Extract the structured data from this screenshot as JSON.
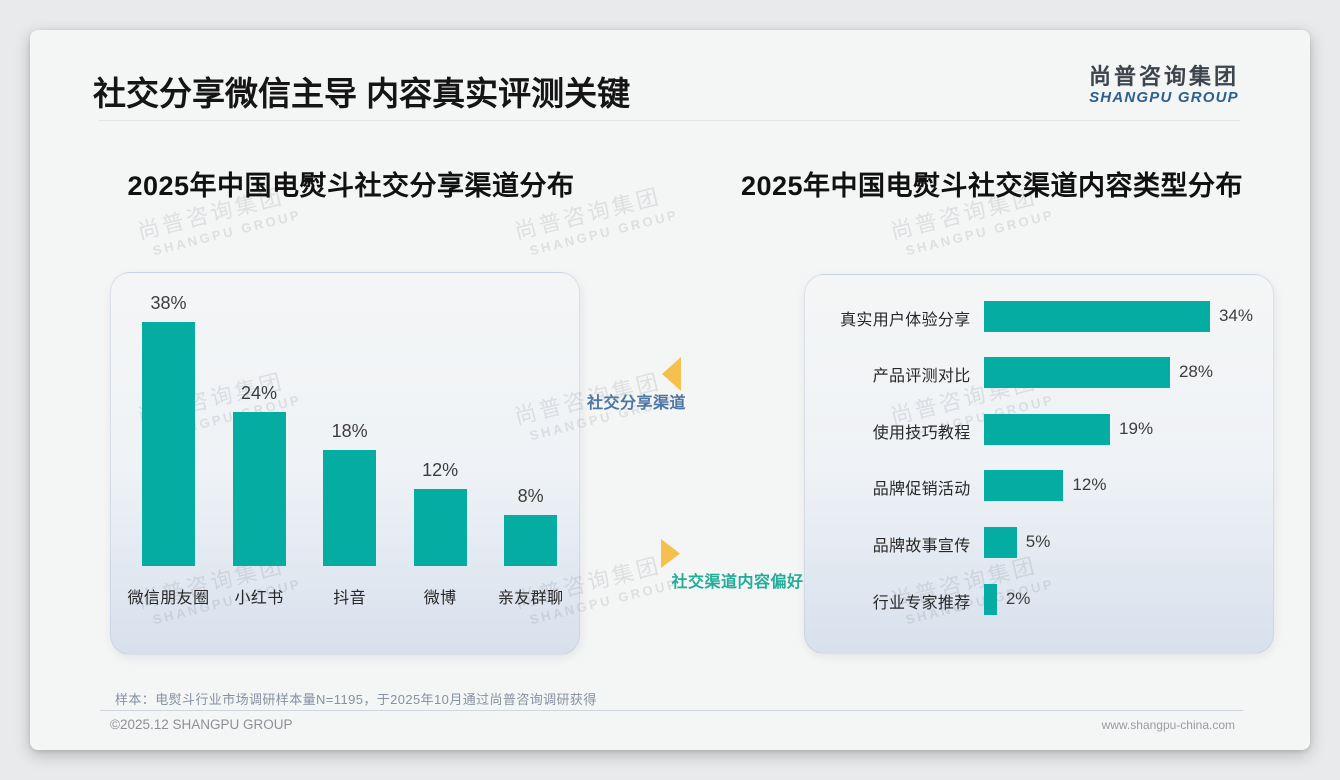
{
  "header": {
    "title": "社交分享微信主导 内容真实评测关键",
    "logo_cn": "尚普咨询集团",
    "logo_en": "SHANGPU GROUP"
  },
  "watermark": {
    "line1": "尚普咨询集团",
    "line2": "SHANGPU GROUP"
  },
  "chart_data": [
    {
      "type": "bar",
      "orientation": "vertical",
      "title": "2025年中国电熨斗社交分享渠道分布",
      "categories": [
        "微信朋友圈",
        "小红书",
        "抖音",
        "微博",
        "亲友群聊"
      ],
      "values": [
        38,
        24,
        18,
        12,
        8
      ],
      "value_labels": [
        "38%",
        "24%",
        "18%",
        "12%",
        "8%"
      ],
      "unit": "%",
      "bar_color": "#05aca2",
      "axis": "none",
      "grid": false,
      "legend": false
    },
    {
      "type": "bar",
      "orientation": "horizontal",
      "title": "2025年中国电熨斗社交渠道内容类型分布",
      "categories": [
        "真实用户体验分享",
        "产品评测对比",
        "使用技巧教程",
        "品牌促销活动",
        "品牌故事宣传",
        "行业专家推荐"
      ],
      "values": [
        34,
        28,
        19,
        12,
        5,
        2
      ],
      "value_labels": [
        "34%",
        "28%",
        "19%",
        "12%",
        "5%",
        "2%"
      ],
      "unit": "%",
      "bar_color": "#05aca2",
      "axis": "none",
      "grid": false,
      "legend": false
    }
  ],
  "annotations": {
    "left_label": "社交分享渠道",
    "left_color": "#4d77a3",
    "right_label": "社交渠道内容偏好",
    "right_color": "#23ad98",
    "arrow_color": "#f6c04f"
  },
  "footer": {
    "note": "样本：电熨斗行业市场调研样本量N=1195，于2025年10月通过尚普咨询调研获得",
    "copyright": "©2025.12 SHANGPU GROUP",
    "website": "www.shangpu-china.com"
  }
}
